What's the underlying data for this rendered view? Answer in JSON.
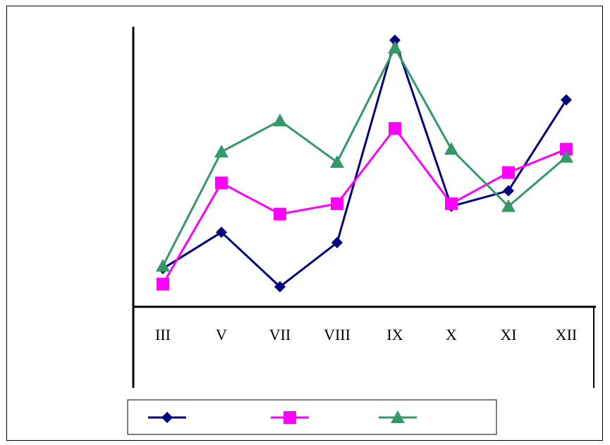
{
  "chart_data": {
    "type": "line",
    "title": "",
    "xlabel": "",
    "ylabel": "",
    "categories": [
      "III",
      "V",
      "VII",
      "VIII",
      "IX",
      "X",
      "XI",
      "XII"
    ],
    "ylim": [
      0,
      100
    ],
    "grid": false,
    "legend": "bottom",
    "series": [
      {
        "color": "#000080",
        "marker": "diamond",
        "values": [
          12,
          26,
          5,
          22,
          100,
          36,
          42,
          77
        ]
      },
      {
        "color": "#FF00FF",
        "marker": "square",
        "values": [
          6,
          45,
          33,
          37,
          66,
          37,
          49,
          58
        ]
      },
      {
        "color": "#339966",
        "marker": "triangle",
        "values": [
          13,
          57,
          69,
          53,
          97,
          58,
          36,
          55
        ]
      }
    ]
  }
}
